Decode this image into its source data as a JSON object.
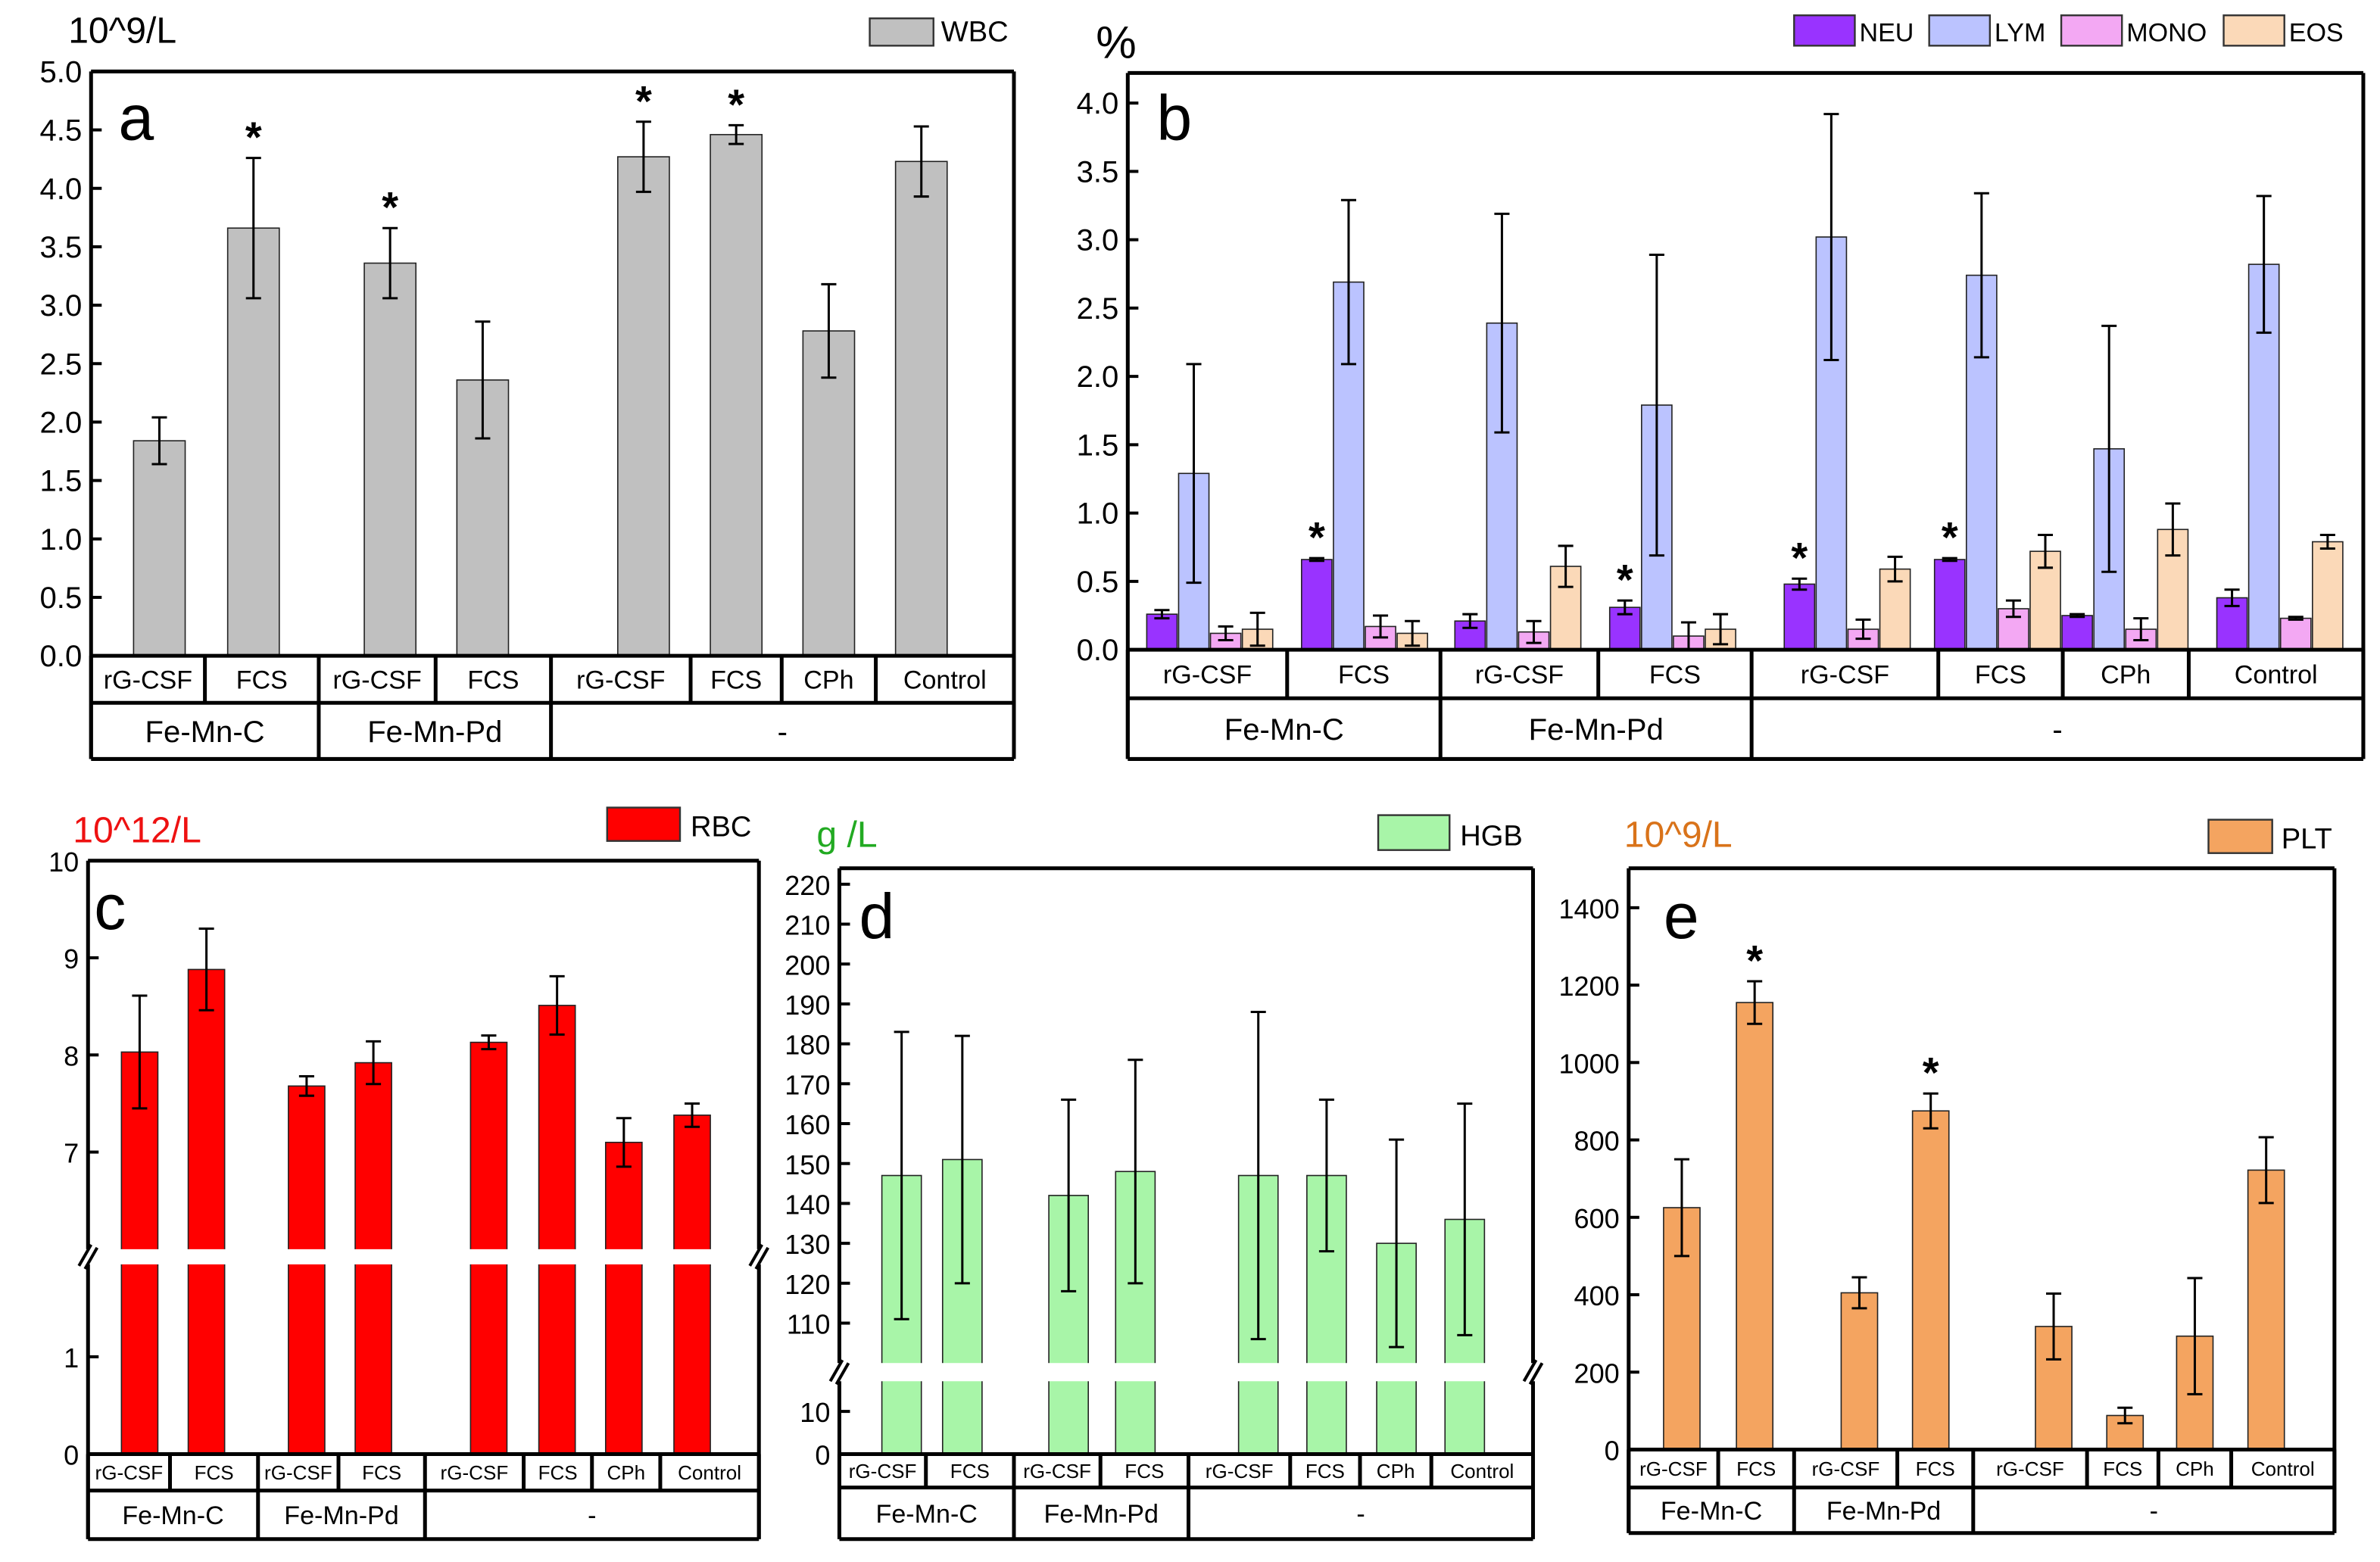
{
  "chart_data": [
    {
      "panel": "a",
      "type": "bar",
      "unit_label": "10^9/L",
      "legend": [
        {
          "name": "WBC",
          "color": "#c0c0c0"
        }
      ],
      "categories": [
        "rG-CSF",
        "FCS",
        "rG-CSF",
        "FCS",
        "rG-CSF",
        "FCS",
        "CPh",
        "Control"
      ],
      "groups": [
        "Fe-Mn-C",
        "Fe-Mn-Pd",
        "-"
      ],
      "series": [
        {
          "name": "WBC",
          "values": [
            1.84,
            3.66,
            3.36,
            2.36,
            4.27,
            4.46,
            2.78,
            4.23
          ],
          "error": [
            0.2,
            0.6,
            0.3,
            0.5,
            0.3,
            0.08,
            0.4,
            0.3
          ]
        }
      ],
      "significant": [
        1,
        2,
        4,
        5
      ],
      "star": "*",
      "ylim": [
        0,
        5
      ],
      "yticks": [
        "0.0",
        "0.5",
        "1.0",
        "1.5",
        "2.0",
        "2.5",
        "3.0",
        "3.5",
        "4.0",
        "4.5",
        "5.0"
      ]
    },
    {
      "panel": "b",
      "type": "bar",
      "unit_label": "%",
      "legend": [
        {
          "name": "NEU",
          "color": "#9933ff"
        },
        {
          "name": "LYM",
          "color": "#bbc3ff"
        },
        {
          "name": "MONO",
          "color": "#f3a8f3"
        },
        {
          "name": "EOS",
          "color": "#fbd9b8"
        }
      ],
      "categories": [
        "rG-CSF",
        "FCS",
        "rG-CSF",
        "FCS",
        "rG-CSF",
        "FCS",
        "CPh",
        "Control"
      ],
      "groups": [
        "Fe-Mn-C",
        "Fe-Mn-Pd",
        "-"
      ],
      "series": [
        {
          "name": "NEU",
          "values": [
            0.26,
            0.66,
            0.21,
            0.31,
            0.48,
            0.66,
            0.25,
            0.38
          ],
          "error": [
            0.03,
            0.01,
            0.05,
            0.05,
            0.04,
            0.01,
            0.01,
            0.06
          ]
        },
        {
          "name": "LYM",
          "values": [
            1.29,
            2.69,
            2.39,
            1.79,
            3.02,
            2.74,
            1.47,
            2.82
          ],
          "error": [
            0.8,
            0.6,
            0.8,
            1.1,
            0.9,
            0.6,
            0.9,
            0.5
          ]
        },
        {
          "name": "MONO",
          "values": [
            0.12,
            0.17,
            0.13,
            0.1,
            0.15,
            0.3,
            0.15,
            0.23
          ],
          "error": [
            0.05,
            0.08,
            0.08,
            0.1,
            0.07,
            0.06,
            0.08,
            0.01
          ]
        },
        {
          "name": "EOS",
          "values": [
            0.15,
            0.12,
            0.61,
            0.15,
            0.59,
            0.72,
            0.88,
            0.79
          ],
          "error": [
            0.12,
            0.09,
            0.15,
            0.11,
            0.09,
            0.12,
            0.19,
            0.05
          ]
        }
      ],
      "significant": [
        1,
        3,
        4,
        5
      ],
      "star": "*",
      "ylim": [
        0,
        4.2
      ],
      "yticks": [
        "0.0",
        "0.5",
        "1.0",
        "1.5",
        "2.0",
        "2.5",
        "3.0",
        "3.5",
        "4.0"
      ]
    },
    {
      "panel": "c",
      "type": "bar",
      "unit_label": "10^12/L",
      "legend": [
        {
          "name": "RBC",
          "color": "#ff0000"
        }
      ],
      "categories": [
        "rG-CSF",
        "FCS",
        "rG-CSF",
        "FCS",
        "rG-CSF",
        "FCS",
        "CPh",
        "Control"
      ],
      "groups": [
        "Fe-Mn-C",
        "Fe-Mn-Pd",
        "-"
      ],
      "series": [
        {
          "name": "RBC",
          "values": [
            8.03,
            8.88,
            7.68,
            7.92,
            8.13,
            8.51,
            7.1,
            7.38
          ],
          "error": [
            0.58,
            0.42,
            0.1,
            0.22,
            0.07,
            0.3,
            0.25,
            0.12
          ]
        }
      ],
      "significant": [],
      "star": "*",
      "ylim": [
        0,
        10
      ],
      "axis_break": [
        1.95,
        6.0
      ],
      "yticks": [
        "0",
        "1",
        "7",
        "8",
        "9",
        "10"
      ]
    },
    {
      "panel": "d",
      "type": "bar",
      "unit_label": "g /L",
      "legend": [
        {
          "name": "HGB",
          "color": "#a8f5a8"
        }
      ],
      "categories": [
        "rG-CSF",
        "FCS",
        "rG-CSF",
        "FCS",
        "rG-CSF",
        "FCS",
        "CPh",
        "Control"
      ],
      "groups": [
        "Fe-Mn-C",
        "Fe-Mn-Pd",
        "-"
      ],
      "series": [
        {
          "name": "HGB",
          "values": [
            147,
            151,
            142,
            148,
            147,
            147,
            130,
            136
          ],
          "error": [
            36,
            31,
            24,
            28,
            41,
            19,
            26,
            29
          ]
        }
      ],
      "significant": [],
      "star": "*",
      "ylim": [
        0,
        224
      ],
      "axis_break": [
        16,
        100
      ],
      "yticks": [
        "0",
        "10",
        "110",
        "120",
        "130",
        "140",
        "150",
        "160",
        "170",
        "180",
        "190",
        "200",
        "210",
        "220"
      ]
    },
    {
      "panel": "e",
      "type": "bar",
      "unit_label": "10^9/L",
      "legend": [
        {
          "name": "PLT",
          "color": "#f4a460"
        }
      ],
      "categories": [
        "rG-CSF",
        "FCS",
        "rG-CSF",
        "FCS",
        "rG-CSF",
        "FCS",
        "CPh",
        "Control"
      ],
      "groups": [
        "Fe-Mn-C",
        "Fe-Mn-Pd",
        "-"
      ],
      "series": [
        {
          "name": "PLT",
          "values": [
            625,
            1155,
            405,
            875,
            318,
            88,
            293,
            722
          ],
          "error": [
            125,
            55,
            40,
            45,
            85,
            20,
            150,
            85
          ]
        }
      ],
      "significant": [
        1,
        3
      ],
      "star": "*",
      "ylim": [
        0,
        1500
      ],
      "yticks": [
        "0",
        "200",
        "400",
        "600",
        "800",
        "1000",
        "1200",
        "1400"
      ]
    }
  ]
}
